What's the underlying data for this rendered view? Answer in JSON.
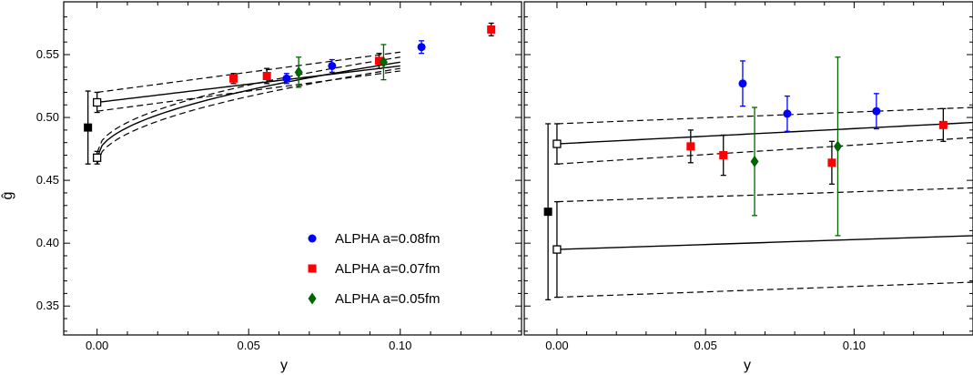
{
  "chart_data": [
    {
      "type": "scatter",
      "panel": "left",
      "xlabel": "y",
      "ylabel": "ĝ",
      "xlim": [
        -0.011,
        0.14
      ],
      "ylim": [
        0.327,
        0.592
      ],
      "xticks": [
        0.0,
        0.05,
        0.1
      ],
      "xtick_labels": [
        "0.00",
        "0.05",
        "0.10"
      ],
      "yticks": [
        0.35,
        0.4,
        0.45,
        0.5,
        0.55
      ],
      "ytick_labels": [
        "0.35",
        "0.40",
        "0.45",
        "0.50",
        "0.55"
      ],
      "legend": {
        "position": "bottom-right",
        "entries": [
          {
            "label": "ALPHA a=0.08fm",
            "color": "#0000ff",
            "marker": "circle"
          },
          {
            "label": "ALPHA a=0.07fm",
            "color": "#ff0000",
            "marker": "square"
          },
          {
            "label": "ALPHA a=0.05fm",
            "color": "#006400",
            "marker": "diamond"
          }
        ]
      },
      "series": [
        {
          "name": "ALPHA a=0.08fm",
          "color": "#0000ff",
          "marker": "circle",
          "points": [
            {
              "x": 0.0625,
              "y": 0.531,
              "err": 0.004
            },
            {
              "x": 0.0775,
              "y": 0.541,
              "err": 0.005
            },
            {
              "x": 0.107,
              "y": 0.556,
              "err": 0.005
            }
          ]
        },
        {
          "name": "ALPHA a=0.07fm",
          "color": "#ff0000",
          "marker": "square",
          "points": [
            {
              "x": 0.045,
              "y": 0.531,
              "err": 0.004
            },
            {
              "x": 0.056,
              "y": 0.533,
              "err": 0.006
            },
            {
              "x": 0.093,
              "y": 0.545,
              "err": 0.006
            },
            {
              "x": 0.13,
              "y": 0.57,
              "err": 0.005
            }
          ]
        },
        {
          "name": "ALPHA a=0.05fm",
          "color": "#006400",
          "marker": "diamond",
          "points": [
            {
              "x": 0.0665,
              "y": 0.536,
              "err": 0.012
            },
            {
              "x": 0.0945,
              "y": 0.544,
              "err": 0.014
            }
          ]
        }
      ],
      "extrapolations": [
        {
          "color": "#000000",
          "marker": "open-square",
          "points": [
            {
              "x": 0.0,
              "y": 0.512,
              "err": 0.008
            },
            {
              "x": 0.0,
              "y": 0.468,
              "err": 0.005
            }
          ]
        },
        {
          "color": "#000000",
          "marker": "filled-square",
          "points": [
            {
              "x": -0.003,
              "y": 0.492,
              "err": 0.029
            }
          ]
        }
      ],
      "fits": [
        {
          "form": "linear",
          "central": [
            [
              0.0,
              0.512
            ],
            [
              0.1,
              0.541
            ]
          ],
          "band_upper": [
            [
              0.0,
              0.52
            ],
            [
              0.1,
              0.552
            ]
          ],
          "band_lower": [
            [
              0.0,
              0.505
            ],
            [
              0.1,
              0.537
            ]
          ]
        },
        {
          "form": "sqrt",
          "central": [
            [
              0.0,
              0.468
            ],
            [
              0.1,
              0.544
            ]
          ],
          "band_upper": [
            [
              0.0,
              0.472
            ],
            [
              0.1,
              0.548
            ]
          ],
          "band_lower": [
            [
              0.0,
              0.463
            ],
            [
              0.1,
              0.539
            ]
          ]
        }
      ]
    },
    {
      "type": "scatter",
      "panel": "right",
      "xlabel": "y",
      "xlim": [
        -0.011,
        0.14
      ],
      "ylim": [
        0.327,
        0.592
      ],
      "xticks": [
        0.0,
        0.05,
        0.1
      ],
      "xtick_labels": [
        "0.00",
        "0.05",
        "0.10"
      ],
      "series": [
        {
          "name": "ALPHA a=0.08fm",
          "color": "#0000ff",
          "marker": "circle",
          "points": [
            {
              "x": 0.0625,
              "y": 0.527,
              "err": 0.018
            },
            {
              "x": 0.0775,
              "y": 0.503,
              "err": 0.014
            },
            {
              "x": 0.1075,
              "y": 0.505,
              "err": 0.014
            }
          ]
        },
        {
          "name": "ALPHA a=0.07fm",
          "color": "#ff0000",
          "marker": "square",
          "points": [
            {
              "x": 0.045,
              "y": 0.477,
              "err": 0.013
            },
            {
              "x": 0.056,
              "y": 0.47,
              "err": 0.016
            },
            {
              "x": 0.0925,
              "y": 0.464,
              "err": 0.017
            },
            {
              "x": 0.13,
              "y": 0.494,
              "err": 0.013
            }
          ]
        },
        {
          "name": "ALPHA a=0.05fm",
          "color": "#006400",
          "marker": "diamond",
          "points": [
            {
              "x": 0.0665,
              "y": 0.465,
              "err": 0.043
            },
            {
              "x": 0.0945,
              "y": 0.477,
              "err": 0.071
            }
          ]
        }
      ],
      "extrapolations": [
        {
          "color": "#000000",
          "marker": "open-square",
          "points": [
            {
              "x": 0.0,
              "y": 0.479,
              "err": 0.016
            },
            {
              "x": 0.0,
              "y": 0.395,
              "err": 0.038
            }
          ]
        },
        {
          "color": "#000000",
          "marker": "filled-square",
          "points": [
            {
              "x": -0.003,
              "y": 0.425,
              "err": 0.07
            }
          ]
        }
      ],
      "fits": [
        {
          "form": "linear",
          "central": [
            [
              0.0,
              0.479
            ],
            [
              0.14,
              0.496
            ]
          ],
          "band_upper": [
            [
              0.0,
              0.495
            ],
            [
              0.14,
              0.508
            ]
          ],
          "band_lower": [
            [
              0.0,
              0.463
            ],
            [
              0.14,
              0.484
            ]
          ]
        },
        {
          "form": "linear",
          "central": [
            [
              0.0,
              0.395
            ],
            [
              0.14,
              0.406
            ]
          ],
          "band_upper": [
            [
              0.0,
              0.433
            ],
            [
              0.14,
              0.444
            ]
          ],
          "band_lower": [
            [
              0.0,
              0.357
            ],
            [
              0.14,
              0.369
            ]
          ]
        }
      ]
    }
  ]
}
